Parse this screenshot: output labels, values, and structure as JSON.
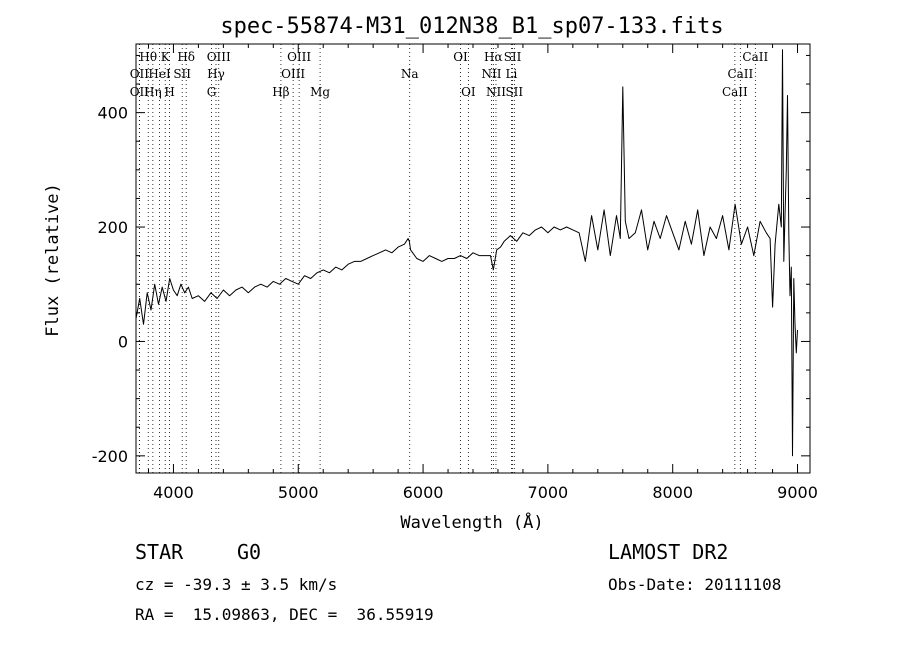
{
  "chart_data": {
    "type": "line",
    "title": "spec-55874-M31_012N38_B1_sp07-133.fits",
    "xlabel": "Wavelength (Å)",
    "ylabel": "Flux (relative)",
    "xlim": [
      3700,
      9100
    ],
    "ylim": [
      -230,
      520
    ],
    "xticks": [
      4000,
      5000,
      6000,
      7000,
      8000,
      9000
    ],
    "yticks": [
      -200,
      0,
      200,
      400
    ],
    "series": [
      {
        "x": [
          3700,
          3730,
          3760,
          3790,
          3820,
          3850,
          3880,
          3910,
          3940,
          3970,
          4000,
          4030,
          4060,
          4090,
          4120,
          4150,
          4200,
          4250,
          4300,
          4350,
          4400,
          4450,
          4500,
          4550,
          4600,
          4650,
          4700,
          4750,
          4800,
          4850,
          4900,
          4950,
          5000,
          5050,
          5100,
          5150,
          5200,
          5250,
          5300,
          5350,
          5400,
          5450,
          5500,
          5550,
          5600,
          5650,
          5700,
          5750,
          5800,
          5850,
          5880,
          5890,
          5900,
          5950,
          6000,
          6050,
          6100,
          6150,
          6200,
          6250,
          6300,
          6350,
          6400,
          6450,
          6500,
          6540,
          6563,
          6590,
          6620,
          6650,
          6700,
          6750,
          6800,
          6850,
          6900,
          6950,
          7000,
          7050,
          7100,
          7150,
          7200,
          7250,
          7300,
          7350,
          7400,
          7450,
          7500,
          7550,
          7580,
          7600,
          7620,
          7650,
          7700,
          7750,
          7800,
          7850,
          7900,
          7950,
          8000,
          8050,
          8100,
          8150,
          8200,
          8250,
          8300,
          8350,
          8400,
          8450,
          8500,
          8550,
          8600,
          8650,
          8700,
          8750,
          8780,
          8800,
          8820,
          8850,
          8870,
          8880,
          8890,
          8900,
          8910,
          8920,
          8930,
          8940,
          8950,
          8960,
          8970,
          8980,
          8990,
          9000
        ],
        "y": [
          40,
          75,
          30,
          85,
          55,
          100,
          65,
          95,
          70,
          110,
          90,
          80,
          100,
          85,
          95,
          75,
          80,
          70,
          85,
          75,
          90,
          80,
          90,
          95,
          85,
          95,
          100,
          95,
          105,
          100,
          110,
          105,
          100,
          115,
          110,
          120,
          125,
          120,
          130,
          125,
          135,
          140,
          140,
          145,
          150,
          155,
          160,
          155,
          165,
          170,
          180,
          175,
          160,
          145,
          140,
          150,
          145,
          140,
          145,
          145,
          150,
          145,
          155,
          150,
          150,
          150,
          125,
          160,
          165,
          175,
          185,
          175,
          190,
          185,
          195,
          200,
          190,
          200,
          195,
          200,
          195,
          190,
          140,
          220,
          160,
          230,
          150,
          220,
          180,
          445,
          210,
          180,
          190,
          230,
          160,
          210,
          180,
          220,
          190,
          160,
          210,
          170,
          230,
          150,
          200,
          180,
          220,
          160,
          240,
          170,
          200,
          150,
          210,
          190,
          180,
          60,
          170,
          240,
          200,
          510,
          140,
          220,
          300,
          430,
          190,
          80,
          130,
          -200,
          110,
          30,
          -20,
          20
        ]
      }
    ],
    "line_markers": [
      {
        "label": "Hθ",
        "x": 3798,
        "row": 0
      },
      {
        "label": "K",
        "x": 3934,
        "row": 0
      },
      {
        "label": "Hδ",
        "x": 4102,
        "row": 0
      },
      {
        "label": "OIII",
        "x": 4363,
        "row": 0
      },
      {
        "label": "OIII",
        "x": 5007,
        "row": 0
      },
      {
        "label": "OI",
        "x": 6300,
        "row": 0
      },
      {
        "label": "Hα",
        "x": 6563,
        "row": 0
      },
      {
        "label": "SII",
        "x": 6717,
        "row": 0
      },
      {
        "label": "CaII",
        "x": 8662,
        "row": 0
      },
      {
        "label": "OII",
        "x": 3727,
        "row": 1
      },
      {
        "label": "HeI",
        "x": 3889,
        "row": 1
      },
      {
        "label": "SII",
        "x": 4070,
        "row": 1
      },
      {
        "label": "Hγ",
        "x": 4341,
        "row": 1
      },
      {
        "label": "OIII",
        "x": 4959,
        "row": 1
      },
      {
        "label": "Na",
        "x": 5893,
        "row": 1
      },
      {
        "label": "NII",
        "x": 6548,
        "row": 1
      },
      {
        "label": "Li",
        "x": 6708,
        "row": 1
      },
      {
        "label": "CaII",
        "x": 8542,
        "row": 1
      },
      {
        "label": "OII",
        "x": 3727,
        "row": 2
      },
      {
        "label": "Hη",
        "x": 3835,
        "row": 2
      },
      {
        "label": "H",
        "x": 3969,
        "row": 2
      },
      {
        "label": "G",
        "x": 4305,
        "row": 2
      },
      {
        "label": "Hβ",
        "x": 4861,
        "row": 2
      },
      {
        "label": "Mg",
        "x": 5175,
        "row": 2
      },
      {
        "label": "OI",
        "x": 6363,
        "row": 2
      },
      {
        "label": "NII",
        "x": 6584,
        "row": 2
      },
      {
        "label": "SII",
        "x": 6731,
        "row": 2
      },
      {
        "label": "CaII",
        "x": 8498,
        "row": 2
      }
    ],
    "grid": false,
    "legend": "none"
  },
  "info": {
    "object_class": "STAR",
    "subclass": "G0",
    "survey": "LAMOST DR2",
    "cz": "cz = -39.3 ± 3.5 km/s",
    "obs_date": "Obs-Date: 20111108",
    "radec": "RA =  15.09863, DEC =  36.55919"
  }
}
